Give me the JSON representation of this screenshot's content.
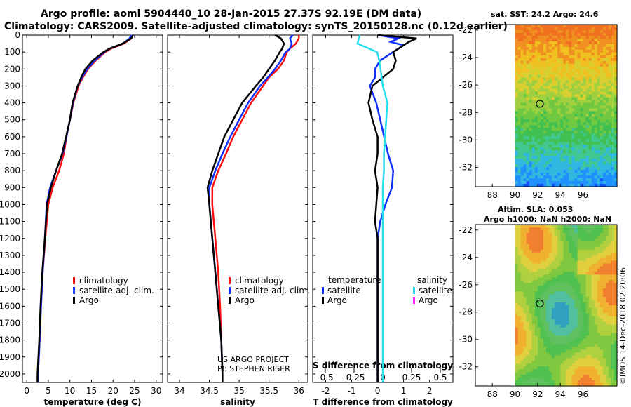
{
  "header": {
    "line1": "Argo profile: aoml 5904440_10 28-Jan-2015 27.37S 92.19E (DM data)",
    "line2": "Climatology: CARS2009. Satellite-adjusted climatology: synTS_20150128.nc (0.12d earlier)"
  },
  "colors": {
    "red": "#ff1010",
    "blue": "#1030ff",
    "black": "#000000",
    "cyan": "#22e0f0",
    "magenta": "#ff20ff"
  },
  "depth_axis": {
    "label": "",
    "range": [
      0,
      2050
    ],
    "ticks": [
      0,
      100,
      200,
      300,
      400,
      500,
      600,
      700,
      800,
      900,
      1000,
      1100,
      1200,
      1300,
      1400,
      1500,
      1600,
      1700,
      1800,
      1900,
      2000
    ]
  },
  "chart_data": [
    {
      "type": "line",
      "name": "temperature",
      "xlabel": "temperature (deg C)",
      "xlim": [
        -1,
        31.5
      ],
      "xticks": [
        0,
        5,
        10,
        15,
        20,
        25,
        30
      ],
      "legend": {
        "items": [
          {
            "label": "climatology",
            "color": "red"
          },
          {
            "label": "satellite-adj. clim.",
            "color": "blue"
          },
          {
            "label": "Argo",
            "color": "black"
          }
        ]
      },
      "series": [
        {
          "name": "climatology",
          "color": "red",
          "depth": [
            0,
            20,
            50,
            80,
            100,
            150,
            200,
            250,
            300,
            400,
            500,
            600,
            700,
            800,
            900,
            1000,
            1200,
            1400,
            1600,
            1800,
            2000,
            2050
          ],
          "values": [
            24.5,
            24.2,
            22.5,
            19.5,
            18.2,
            16,
            14.2,
            13,
            12,
            10.8,
            10,
            9.2,
            8.6,
            7.5,
            6,
            5,
            4.3,
            3.7,
            3.3,
            3.0,
            2.6,
            2.6
          ]
        },
        {
          "name": "satellite-adj. clim.",
          "color": "blue",
          "depth": [
            0,
            20,
            50,
            80,
            100,
            150,
            200,
            250,
            300,
            400,
            500,
            600,
            700,
            800,
            900,
            1000,
            1200,
            1400,
            1600,
            1800,
            2000,
            2050
          ],
          "values": [
            24.3,
            23.8,
            22.3,
            19.2,
            18,
            15.8,
            14,
            12.8,
            11.8,
            10.7,
            10,
            9.2,
            8.3,
            6.8,
            5.4,
            4.6,
            4.2,
            3.7,
            3.3,
            3.0,
            2.6,
            2.6
          ]
        },
        {
          "name": "Argo",
          "color": "black",
          "depth": [
            0,
            20,
            50,
            80,
            100,
            150,
            200,
            250,
            300,
            400,
            500,
            600,
            700,
            800,
            900,
            1000,
            1200,
            1400,
            1600,
            1800,
            2000,
            2050
          ],
          "values": [
            24.6,
            24.2,
            22.2,
            19.2,
            17.8,
            15.3,
            13.6,
            12.6,
            11.8,
            10.6,
            10,
            9.1,
            8.2,
            6.8,
            5.6,
            4.7,
            4.2,
            3.6,
            3.2,
            2.9,
            2.5,
            2.5
          ]
        }
      ]
    },
    {
      "type": "line",
      "name": "salinity",
      "xlabel": "salinity",
      "xlim": [
        33.8,
        36.15
      ],
      "xticks": [
        34,
        34.5,
        35,
        35.5,
        36
      ],
      "legend": {
        "items": [
          {
            "label": "climatology",
            "color": "red"
          },
          {
            "label": "satellite-adj. clim.",
            "color": "blue"
          },
          {
            "label": "Argo",
            "color": "black"
          }
        ]
      },
      "annotations": [
        "US ARGO PROJECT",
        "PI: STEPHEN RISER"
      ],
      "series": [
        {
          "name": "climatology",
          "color": "red",
          "depth": [
            0,
            20,
            50,
            80,
            100,
            150,
            200,
            250,
            300,
            400,
            500,
            600,
            700,
            800,
            900,
            1000,
            1200,
            1400,
            1600,
            1800,
            2000,
            2050
          ],
          "values": [
            36.0,
            36.0,
            35.95,
            35.85,
            35.8,
            35.75,
            35.65,
            35.5,
            35.4,
            35.2,
            35.05,
            34.9,
            34.78,
            34.65,
            34.55,
            34.55,
            34.6,
            34.65,
            34.68,
            34.7,
            34.72,
            34.72
          ]
        },
        {
          "name": "satellite-adj. clim.",
          "color": "blue",
          "depth": [
            0,
            20,
            50,
            80,
            100,
            150,
            200,
            250,
            300,
            400,
            500,
            600,
            700,
            800,
            900,
            1000,
            1200,
            1400,
            1600,
            1800,
            2000,
            2050
          ],
          "values": [
            35.9,
            35.85,
            35.88,
            35.85,
            35.78,
            35.7,
            35.6,
            35.48,
            35.35,
            35.15,
            35.0,
            34.85,
            34.72,
            34.6,
            34.5,
            34.5,
            34.55,
            34.6,
            34.65,
            34.7,
            34.72,
            34.72
          ]
        },
        {
          "name": "Argo",
          "color": "black",
          "depth": [
            0,
            20,
            50,
            80,
            100,
            150,
            200,
            250,
            300,
            400,
            500,
            600,
            700,
            800,
            900,
            1000,
            1200,
            1400,
            1600,
            1800,
            2000,
            2050
          ],
          "values": [
            35.6,
            35.7,
            35.75,
            35.72,
            35.68,
            35.6,
            35.5,
            35.4,
            35.28,
            35.05,
            34.9,
            34.75,
            34.65,
            34.55,
            34.47,
            34.5,
            34.55,
            34.6,
            34.65,
            34.7,
            34.72,
            34.72
          ]
        }
      ]
    },
    {
      "type": "line",
      "name": "difference",
      "xlabel": "T difference from climatology",
      "xlabel2": "S difference from climatology",
      "xlim": [
        -2.5,
        2.9
      ],
      "xticks": [
        -2,
        -1,
        0,
        1,
        2
      ],
      "xticks2": [
        -0.5,
        -0.25,
        0,
        0.25,
        0.5
      ],
      "xtick_labels2": [
        "-0.5",
        "-0.25",
        "0",
        "0.25",
        "0.5"
      ],
      "legend": {
        "temperature_title": "temperature",
        "salinity_title": "salinity",
        "temperature_items": [
          {
            "label": "satellite",
            "color": "blue"
          },
          {
            "label": "Argo",
            "color": "black"
          }
        ],
        "salinity_items": [
          {
            "label": "satellite",
            "color": "cyan"
          },
          {
            "label": "Argo",
            "color": "magenta"
          }
        ]
      },
      "series": [
        {
          "name": "T satellite",
          "color": "blue",
          "depth": [
            0,
            20,
            40,
            60,
            80,
            100,
            150,
            200,
            250,
            300,
            400,
            500,
            600,
            700,
            800,
            900,
            1000,
            1100,
            1200,
            1400,
            1600,
            1800,
            2000,
            2050
          ],
          "values": [
            0,
            0.8,
            0.5,
            1.0,
            0.8,
            0.6,
            0.1,
            -0.1,
            -0.1,
            -0.3,
            -0.05,
            0.1,
            0.25,
            0.4,
            0.6,
            0.55,
            0.3,
            0.1,
            0,
            0,
            0,
            0,
            0,
            0
          ]
        },
        {
          "name": "T Argo",
          "color": "black",
          "depth": [
            0,
            20,
            40,
            60,
            80,
            100,
            150,
            200,
            250,
            300,
            400,
            500,
            600,
            700,
            800,
            900,
            1000,
            1100,
            1200,
            1400,
            1600,
            1800,
            2000,
            2050
          ],
          "values": [
            0,
            1.5,
            1.2,
            1.0,
            0.8,
            0.6,
            0.7,
            0.6,
            0.2,
            -0.2,
            -0.35,
            -0.2,
            0.0,
            0.0,
            -0.1,
            0,
            -0.05,
            -0.1,
            0,
            0,
            0,
            0,
            0,
            0
          ]
        },
        {
          "name": "S satellite",
          "color": "cyan",
          "depth": [
            0,
            50,
            100,
            150,
            200,
            300,
            400,
            500,
            600,
            700,
            800,
            900,
            1000,
            1100,
            1200,
            1400,
            1600,
            1800,
            2000,
            2050
          ],
          "values": [
            -0.2,
            -0.22,
            -0.05,
            -0.03,
            -0.02,
            0.0,
            0.04,
            0.03,
            0.02,
            0.01,
            0.01,
            0.0,
            0.0,
            0.0,
            0.0,
            0.0,
            0.0,
            0.0,
            0.0,
            0.0
          ]
        }
      ]
    },
    {
      "type": "heatmap",
      "name": "sat-sst-map",
      "title": "sat. SST: 24.2  Argo: 24.6",
      "xticks": [
        88,
        90,
        92,
        94,
        96
      ],
      "yticks": [
        -22,
        -24,
        -26,
        -28,
        -30,
        -32
      ],
      "xlim": [
        86.5,
        99
      ],
      "ylim": [
        -33.4,
        -21.6
      ],
      "marker": {
        "lon": 92.19,
        "lat": -27.37
      }
    },
    {
      "type": "heatmap",
      "name": "sla-map",
      "title": "Altim. SLA: 0.053",
      "subtitle": "Argo h1000: NaN  h2000: NaN",
      "xticks": [
        88,
        90,
        92,
        94,
        96
      ],
      "yticks": [
        -22,
        -24,
        -26,
        -28,
        -30,
        -32
      ],
      "xlim": [
        86.5,
        99
      ],
      "ylim": [
        -33.4,
        -21.6
      ],
      "marker": {
        "lon": 92.19,
        "lat": -27.37
      }
    }
  ],
  "credit": "©IMOS 14-Dec-2018 02:20:06"
}
